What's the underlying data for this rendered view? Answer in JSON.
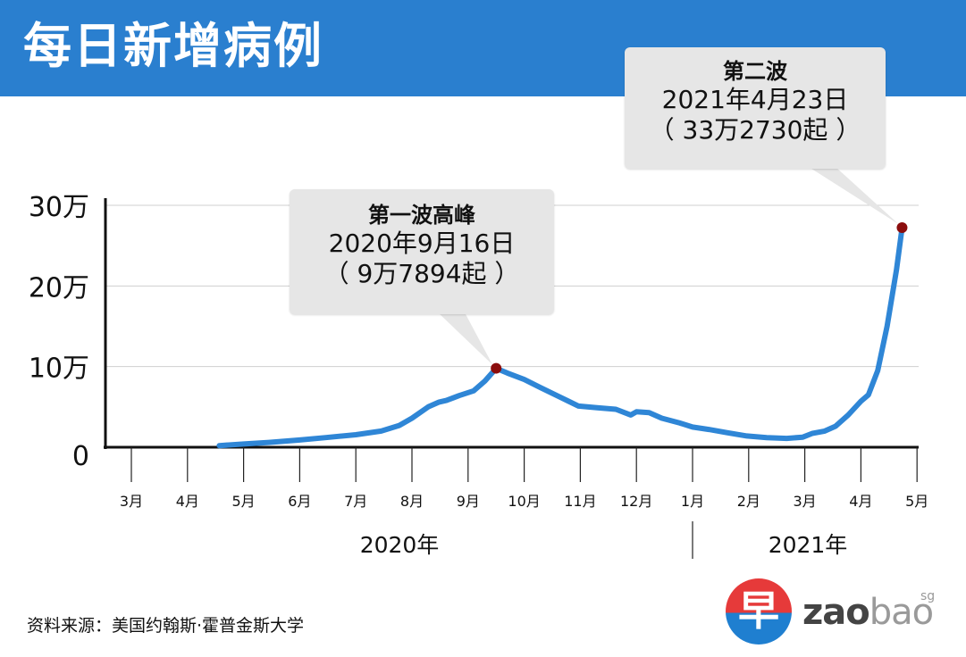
{
  "header": {
    "title": "每日新增病例"
  },
  "chart_data": {
    "type": "line",
    "title": "每日新增病例",
    "y_tick_labels": [
      "0",
      "10万",
      "20万",
      "30万"
    ],
    "y_ticks": [
      0,
      100000,
      200000,
      300000
    ],
    "ylim": [
      0,
      300000
    ],
    "x_month_labels": [
      "3月",
      "4月",
      "5月",
      "6月",
      "7月",
      "8月",
      "9月",
      "10月",
      "11月",
      "12月",
      "1月",
      "2月",
      "3月",
      "4月",
      "5月"
    ],
    "x_month_dates": [
      "2020-03-01",
      "2020-04-01",
      "2020-05-01",
      "2020-06-01",
      "2020-07-01",
      "2020-08-01",
      "2020-09-01",
      "2020-10-01",
      "2020-11-01",
      "2020-12-01",
      "2021-01-01",
      "2021-02-01",
      "2021-03-01",
      "2021-04-01",
      "2021-05-01"
    ],
    "year_labels": [
      "2020年",
      "2021年"
    ],
    "grid": true,
    "series": [
      {
        "x": [
          "2020-04-18",
          "2020-05-01",
          "2020-05-15",
          "2020-06-01",
          "2020-06-15",
          "2020-07-01",
          "2020-07-15",
          "2020-07-25",
          "2020-08-01",
          "2020-08-10",
          "2020-08-16",
          "2020-08-20",
          "2020-08-27",
          "2020-09-04",
          "2020-09-10",
          "2020-09-16",
          "2020-09-22",
          "2020-10-01",
          "2020-10-10",
          "2020-10-20",
          "2020-10-31",
          "2020-11-10",
          "2020-11-20",
          "2020-11-28",
          "2020-12-01",
          "2020-12-08",
          "2020-12-15",
          "2020-12-25",
          "2021-01-01",
          "2021-01-10",
          "2021-01-20",
          "2021-01-31",
          "2021-02-10",
          "2021-02-20",
          "2021-02-28",
          "2021-03-05",
          "2021-03-12",
          "2021-03-18",
          "2021-03-25",
          "2021-04-01",
          "2021-04-05",
          "2021-04-10",
          "2021-04-15",
          "2021-04-20",
          "2021-04-23"
        ],
        "values": [
          2000,
          4000,
          6000,
          9000,
          12000,
          15500,
          20000,
          27000,
          36000,
          50000,
          56000,
          58000,
          64000,
          70000,
          82000,
          97894,
          92000,
          84000,
          74000,
          63000,
          51000,
          49000,
          47000,
          40000,
          44000,
          43000,
          36000,
          30000,
          25000,
          22000,
          18000,
          14000,
          12000,
          11000,
          12500,
          17000,
          20000,
          26000,
          40000,
          57000,
          65000,
          95000,
          150000,
          220000,
          332730
        ]
      }
    ],
    "annotations": [
      {
        "title": "第一波高峰",
        "date": "2020年9月16日",
        "value": "（ 9万7894起 ）",
        "x": "2020-09-16",
        "y": 97894
      },
      {
        "title": "第二波",
        "date": "2021年4月23日",
        "value": "（ 33万2730起 ）",
        "x": "2021-04-23",
        "y": 332730
      }
    ],
    "colors": {
      "line": "#2f86d6",
      "marker": "#8b0d0d",
      "grid": "#cfcfcf",
      "axis": "#111111"
    }
  },
  "source": {
    "text": "资料来源：美国约翰斯·霍普金斯大学"
  },
  "logo": {
    "mark": "早",
    "text_bold": "zao",
    "text_light": "bao",
    "suffix": "sg"
  }
}
